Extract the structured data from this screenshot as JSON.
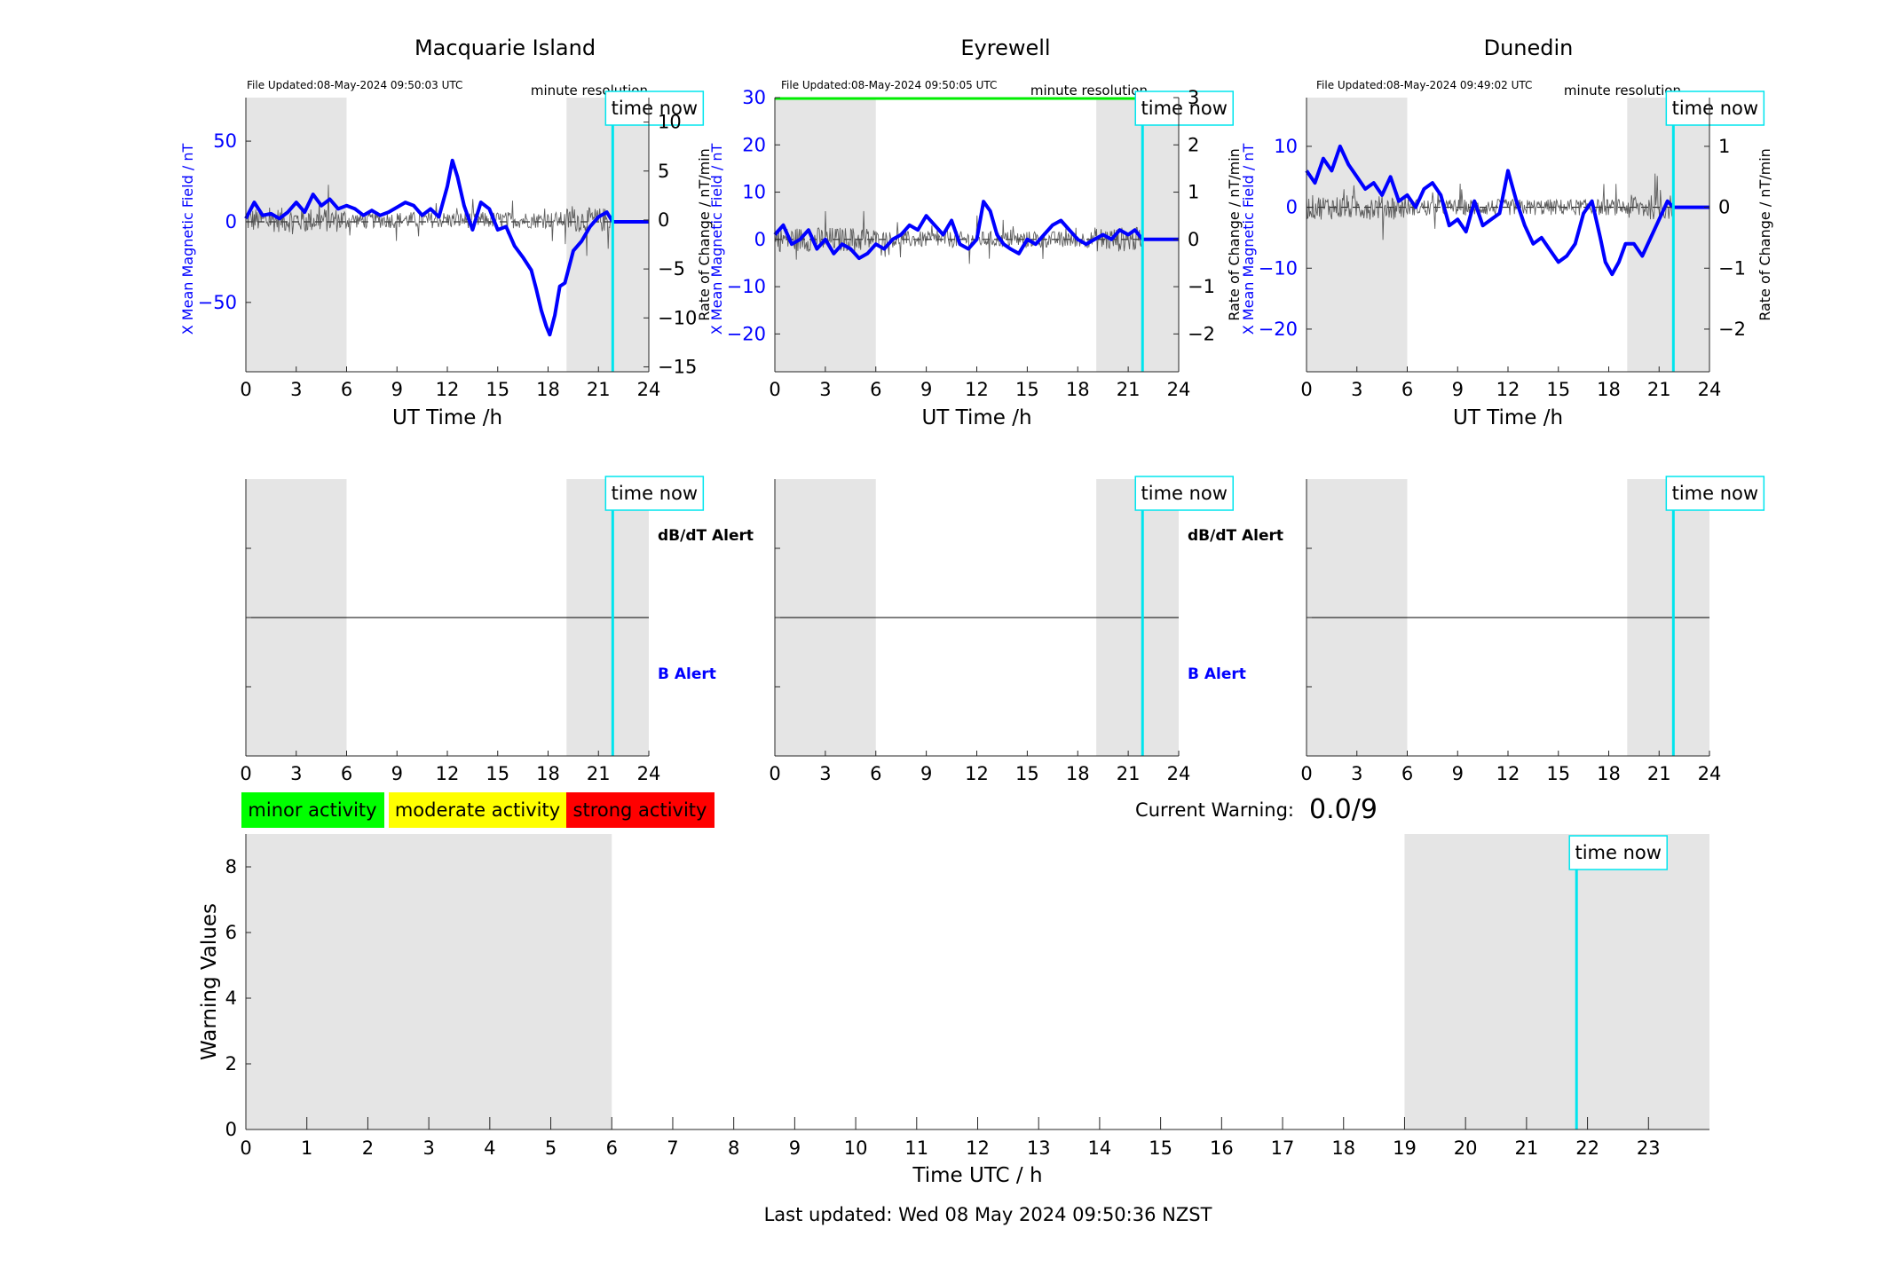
{
  "figure": {
    "last_updated": "Last updated: Wed 08 May 2024 09:50:36 NZST",
    "current_warning_label": "Current Warning:",
    "current_warning_value": "0.0/9",
    "time_now_label": "time now",
    "resolution_label": "minute resolution",
    "legend": [
      {
        "label": "minor activity",
        "color": "#00ff00"
      },
      {
        "label": "moderate activity",
        "color": "#ffff00"
      },
      {
        "label": "strong activity",
        "color": "#ff0000"
      }
    ]
  },
  "chart_data": [
    {
      "type": "line",
      "title": "Macquarie Island",
      "file_updated": "File Updated:08-May-2024 09:50:03 UTC",
      "xlabel": "UT Time /h",
      "ylabel_left": "X Mean Magnetic Field / nT",
      "ylabel_right": "Rate of Change / nT/min",
      "xlim": [
        0,
        24
      ],
      "xticks": [
        0,
        3,
        6,
        9,
        12,
        15,
        18,
        21,
        24
      ],
      "ylim_left": [
        -93,
        77
      ],
      "yticks_left": [
        -50,
        0,
        50
      ],
      "ylim_right": [
        -15.5,
        12.5
      ],
      "yticks_right": [
        -15,
        -10,
        -5,
        0,
        5,
        10
      ],
      "night_shading": [
        [
          0,
          6
        ],
        [
          19.1,
          24
        ]
      ],
      "time_now": 21.85,
      "series": [
        {
          "name": "",
          "color": "#0000ff",
          "axis": "left",
          "x": [
            0,
            0.5,
            1,
            1.5,
            2,
            2.5,
            3,
            3.5,
            4,
            4.5,
            5,
            5.5,
            6,
            6.5,
            7,
            7.5,
            8,
            8.5,
            9,
            9.5,
            10,
            10.5,
            11,
            11.5,
            12,
            12.3,
            12.6,
            13,
            13.5,
            14,
            14.5,
            15,
            15.5,
            16,
            16.5,
            17,
            17.3,
            17.6,
            17.9,
            18.1,
            18.4,
            18.7,
            19,
            19.5,
            20,
            20.5,
            21,
            21.5,
            21.85,
            24
          ],
          "y": [
            2,
            12,
            4,
            5,
            2,
            6,
            12,
            6,
            17,
            10,
            14,
            8,
            10,
            8,
            4,
            7,
            4,
            6,
            9,
            12,
            10,
            4,
            8,
            3,
            22,
            38,
            28,
            10,
            -5,
            12,
            8,
            -5,
            -3,
            -15,
            -22,
            -30,
            -42,
            -55,
            -65,
            -70,
            -58,
            -40,
            -38,
            -18,
            -12,
            -3,
            3,
            6,
            0,
            0
          ]
        },
        {
          "name": "",
          "color": "#000000",
          "axis": "right",
          "style": "rate"
        }
      ]
    },
    {
      "type": "line",
      "title": "Eyrewell",
      "file_updated": "File Updated:08-May-2024 09:50:05 UTC",
      "xlabel": "UT Time /h",
      "ylabel_left": "X Mean Magnetic Field / nT",
      "ylabel_right": "Rate of Change / nT/min",
      "xlim": [
        0,
        24
      ],
      "xticks": [
        0,
        3,
        6,
        9,
        12,
        15,
        18,
        21,
        24
      ],
      "ylim_left": [
        -28,
        30
      ],
      "yticks_left": [
        -20,
        -10,
        0,
        10,
        20,
        30
      ],
      "ylim_right": [
        -2.8,
        3
      ],
      "yticks_right": [
        -2,
        -1,
        0,
        1,
        2,
        3
      ],
      "night_shading": [
        [
          0,
          6
        ],
        [
          19.1,
          24
        ]
      ],
      "time_now": 21.85,
      "top_line": {
        "x": [
          0,
          21.85
        ],
        "value": 30,
        "color": "#00ee00"
      },
      "series": [
        {
          "name": "",
          "color": "#0000ff",
          "axis": "left",
          "x": [
            0,
            0.5,
            1,
            1.5,
            2,
            2.5,
            3,
            3.5,
            4,
            4.5,
            5,
            5.5,
            6,
            6.5,
            7,
            7.5,
            8,
            8.5,
            9,
            9.5,
            10,
            10.5,
            11,
            11.5,
            12,
            12.4,
            12.8,
            13.2,
            13.6,
            14,
            14.5,
            15,
            15.5,
            16,
            16.5,
            17,
            17.5,
            18,
            18.5,
            19,
            19.5,
            20,
            20.5,
            21,
            21.4,
            21.85,
            24
          ],
          "y": [
            1,
            3,
            -1,
            0,
            2,
            -2,
            0,
            -3,
            -1,
            -2,
            -4,
            -3,
            -1,
            -2,
            0,
            1,
            3,
            2,
            5,
            3,
            1,
            4,
            -1,
            -2,
            0,
            8,
            6,
            1,
            -1,
            -2,
            -3,
            0,
            -1,
            1,
            3,
            4,
            2,
            0,
            -1,
            0,
            1,
            0,
            2,
            1,
            2,
            0,
            0
          ]
        },
        {
          "name": "",
          "color": "#000000",
          "axis": "right",
          "style": "rate"
        }
      ]
    },
    {
      "type": "line",
      "title": "Dunedin",
      "file_updated": "File Updated:08-May-2024 09:49:02 UTC",
      "xlabel": "UT Time /h",
      "ylabel_left": "X Mean Magnetic Field / nT",
      "ylabel_right": "Rate of Change / nT/min",
      "xlim": [
        0,
        24
      ],
      "xticks": [
        0,
        3,
        6,
        9,
        12,
        15,
        18,
        21,
        24
      ],
      "ylim_left": [
        -27,
        18
      ],
      "yticks_left": [
        -20,
        -10,
        0,
        10
      ],
      "ylim_right": [
        -2.7,
        1.8
      ],
      "yticks_right": [
        -2,
        -1,
        0,
        1
      ],
      "night_shading": [
        [
          0,
          6
        ],
        [
          19.1,
          24
        ]
      ],
      "time_now": 21.85,
      "series": [
        {
          "name": "",
          "color": "#0000ff",
          "axis": "left",
          "x": [
            0,
            0.5,
            1,
            1.5,
            2,
            2.5,
            3,
            3.5,
            4,
            4.5,
            5,
            5.5,
            6,
            6.5,
            7,
            7.5,
            8,
            8.5,
            9,
            9.5,
            10,
            10.5,
            11,
            11.5,
            12,
            12.5,
            13,
            13.5,
            14,
            14.5,
            15,
            15.5,
            16,
            16.5,
            17,
            17.5,
            17.8,
            18.2,
            18.6,
            19,
            19.5,
            20,
            20.5,
            21,
            21.5,
            21.85,
            24
          ],
          "y": [
            6,
            4,
            8,
            6,
            10,
            7,
            5,
            3,
            4,
            2,
            5,
            1,
            2,
            0,
            3,
            4,
            2,
            -3,
            -2,
            -4,
            1,
            -3,
            -2,
            -1,
            6,
            1,
            -3,
            -6,
            -5,
            -7,
            -9,
            -8,
            -6,
            -1,
            1,
            -5,
            -9,
            -11,
            -9,
            -6,
            -6,
            -8,
            -5,
            -2,
            1,
            0,
            0
          ]
        },
        {
          "name": "",
          "color": "#000000",
          "axis": "right",
          "style": "rate"
        }
      ]
    },
    {
      "type": "line",
      "title": "",
      "station": "Macquarie Island",
      "xlim": [
        0,
        24
      ],
      "xticks": [
        0,
        3,
        6,
        9,
        12,
        15,
        18,
        21,
        24
      ],
      "ylim": [
        -1,
        1
      ],
      "yticks": [
        -0.5,
        0,
        0.5
      ],
      "night_shading": [
        [
          0,
          6
        ],
        [
          19.1,
          24
        ]
      ],
      "time_now": 21.85,
      "upper_label": "dB/dT Alert",
      "lower_label": "B Alert",
      "series": [
        {
          "name": "",
          "color": "#000000",
          "x": [
            0,
            24
          ],
          "y": [
            0,
            0
          ]
        }
      ]
    },
    {
      "type": "line",
      "title": "",
      "station": "Eyrewell",
      "xlim": [
        0,
        24
      ],
      "xticks": [
        0,
        3,
        6,
        9,
        12,
        15,
        18,
        21,
        24
      ],
      "ylim": [
        -1,
        1
      ],
      "yticks": [
        -0.5,
        0,
        0.5
      ],
      "night_shading": [
        [
          0,
          6
        ],
        [
          19.1,
          24
        ]
      ],
      "time_now": 21.85,
      "upper_label": "dB/dT Alert",
      "lower_label": "B Alert",
      "series": [
        {
          "name": "",
          "color": "#000000",
          "x": [
            0,
            24
          ],
          "y": [
            0,
            0
          ]
        }
      ]
    },
    {
      "type": "line",
      "title": "",
      "station": "Dunedin",
      "xlim": [
        0,
        24
      ],
      "xticks": [
        0,
        3,
        6,
        9,
        12,
        15,
        18,
        21,
        24
      ],
      "ylim": [
        -1,
        1
      ],
      "yticks": [
        -0.5,
        0,
        0.5
      ],
      "night_shading": [
        [
          0,
          6
        ],
        [
          19.1,
          24
        ]
      ],
      "time_now": 21.85,
      "series": [
        {
          "name": "",
          "color": "#000000",
          "x": [
            0,
            24
          ],
          "y": [
            0,
            0
          ]
        }
      ]
    },
    {
      "type": "bar",
      "title": "",
      "xlabel": "Time UTC / h",
      "ylabel": "Warning Values",
      "xlim": [
        0,
        24
      ],
      "xticks": [
        0,
        1,
        2,
        3,
        4,
        5,
        6,
        7,
        8,
        9,
        10,
        11,
        12,
        13,
        14,
        15,
        16,
        17,
        18,
        19,
        20,
        21,
        22,
        23
      ],
      "ylim": [
        0,
        9
      ],
      "yticks": [
        0,
        2,
        4,
        6,
        8
      ],
      "night_shading": [
        [
          0,
          6
        ],
        [
          19,
          24
        ]
      ],
      "time_now": 21.82,
      "values": []
    }
  ]
}
